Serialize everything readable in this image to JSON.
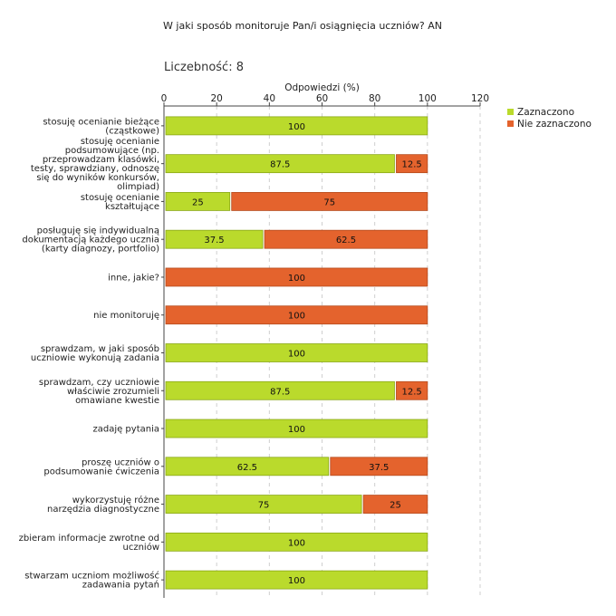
{
  "header": {
    "title": "W jaki sposób monitoruje Pan/i osiągnięcia uczniów?  AN",
    "count_label": "Liczebność:  8"
  },
  "legend": {
    "items": [
      {
        "label": "Zaznaczono",
        "color": "#bada2c"
      },
      {
        "label": "Nie zaznaczono",
        "color": "#e4632d"
      }
    ]
  },
  "chart_data": {
    "type": "bar",
    "orientation": "horizontal",
    "stacked": true,
    "xlabel": "Odpowiedzi (%)",
    "xlim": [
      0,
      120
    ],
    "xticks": [
      0,
      20,
      40,
      60,
      80,
      100,
      120
    ],
    "categories": [
      [
        "stosuję ocenianie bieżące",
        "(cząstkowe)"
      ],
      [
        "stosuję ocenianie",
        "podsumowujące (np.",
        "przeprowadzam klasówki,",
        "testy, sprawdziany, odnoszę",
        "się do wyników konkursów,",
        "olimpiad)"
      ],
      [
        "stosuję ocenianie",
        "kształtujące"
      ],
      [
        "posługuję się indywidualną",
        "dokumentacją każdego ucznia",
        "(karty diagnozy, portfolio)"
      ],
      [
        "inne, jakie?"
      ],
      [
        "nie monitoruję"
      ],
      [
        "sprawdzam, w jaki sposób",
        "uczniowie wykonują zadania"
      ],
      [
        "sprawdzam, czy uczniowie",
        "właściwie zrozumieli",
        "omawiane kwestie"
      ],
      [
        "zadaję pytania"
      ],
      [
        "proszę uczniów o",
        "podsumowanie ćwiczenia"
      ],
      [
        "wykorzystuję różne",
        "narzędzia diagnostyczne"
      ],
      [
        "zbieram informacje zwrotne od",
        "uczniów"
      ],
      [
        "stwarzam uczniom możliwość",
        "zadawania pytań"
      ]
    ],
    "series": [
      {
        "name": "Zaznaczono",
        "color": "#bada2c",
        "values": [
          100,
          87.5,
          25,
          37.5,
          0,
          0,
          100,
          87.5,
          100,
          62.5,
          75,
          100,
          100
        ]
      },
      {
        "name": "Nie zaznaczono",
        "color": "#e4632d",
        "values": [
          0,
          12.5,
          75,
          62.5,
          100,
          100,
          0,
          12.5,
          0,
          37.5,
          25,
          0,
          0
        ]
      }
    ]
  }
}
